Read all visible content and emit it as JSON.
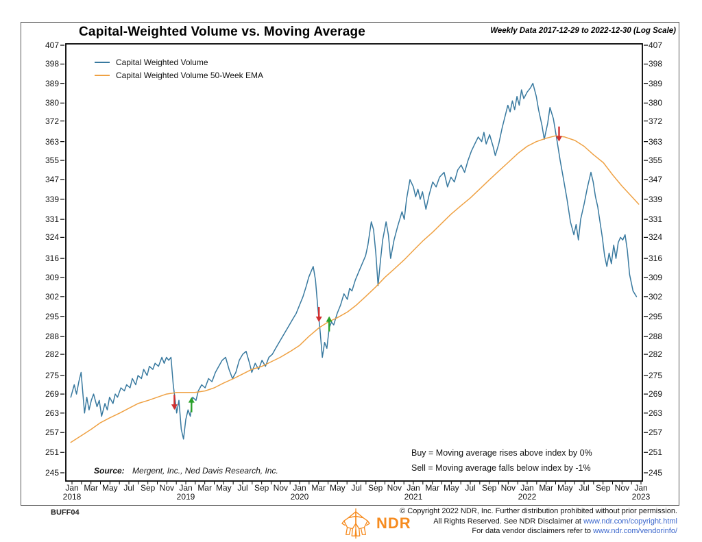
{
  "header": {
    "title": "Capital-Weighted Volume vs. Moving Average",
    "period_note": "Weekly Data 2017-12-29 to 2022-12-30 (Log Scale)"
  },
  "legend": [
    {
      "label": "Capital Weighted Volume",
      "color": "#38799f"
    },
    {
      "label": "Capital Weighted Volume 50-Week EMA",
      "color": "#efa143"
    }
  ],
  "annotations": {
    "buy_rule": "Buy = Moving average rises above index by 0%",
    "sell_rule": "Sell = Moving average falls below index by -1%",
    "source_label": "Source:",
    "source_text": "Mergent, Inc., Ned Davis Research, Inc."
  },
  "footer": {
    "chart_code": "BUFF04",
    "logo_text": "NDR",
    "logo_color": "#f68b1f",
    "copyright_line1": "© Copyright 2022 NDR, Inc. Further distribution prohibited without prior permission.",
    "copyright_line2_prefix": "All Rights Reserved. See NDR Disclaimer at ",
    "copyright_line2_link": "www.ndr.com/copyright.html",
    "copyright_line3_prefix": "For data vendor disclaimers refer to ",
    "copyright_line3_link": "www.ndr.com/vendorinfo/",
    "link_color": "#3a66cc"
  },
  "chart_data": {
    "type": "line",
    "title": "Capital-Weighted Volume vs. Moving Average",
    "y_scale": "log",
    "y_ticks": [
      407,
      398,
      389,
      380,
      372,
      363,
      355,
      347,
      339,
      331,
      324,
      316,
      309,
      302,
      295,
      288,
      282,
      275,
      269,
      263,
      257,
      251,
      245
    ],
    "ylim": [
      242,
      409
    ],
    "x_years": [
      2018,
      2019,
      2020,
      2021,
      2022
    ],
    "x_month_labels": [
      "Jan",
      "Mar",
      "May",
      "Jul",
      "Sep",
      "Nov"
    ],
    "x_final_month": "Jan",
    "x_final_year": 2023,
    "grid": false,
    "legend_position": "top-left",
    "series": [
      {
        "name": "Capital Weighted Volume",
        "color": "#38799f",
        "points": [
          [
            2017.99,
            268
          ],
          [
            2018.02,
            272
          ],
          [
            2018.04,
            269
          ],
          [
            2018.06,
            273
          ],
          [
            2018.08,
            276
          ],
          [
            2018.11,
            263
          ],
          [
            2018.13,
            268
          ],
          [
            2018.15,
            264
          ],
          [
            2018.17,
            267
          ],
          [
            2018.19,
            269
          ],
          [
            2018.22,
            265
          ],
          [
            2018.24,
            267
          ],
          [
            2018.26,
            262
          ],
          [
            2018.29,
            266
          ],
          [
            2018.31,
            264
          ],
          [
            2018.33,
            268
          ],
          [
            2018.36,
            266
          ],
          [
            2018.38,
            269
          ],
          [
            2018.4,
            268
          ],
          [
            2018.43,
            271
          ],
          [
            2018.46,
            270
          ],
          [
            2018.48,
            272
          ],
          [
            2018.51,
            271
          ],
          [
            2018.53,
            274
          ],
          [
            2018.56,
            272
          ],
          [
            2018.58,
            275
          ],
          [
            2018.61,
            274
          ],
          [
            2018.63,
            277
          ],
          [
            2018.66,
            275
          ],
          [
            2018.68,
            278
          ],
          [
            2018.71,
            277
          ],
          [
            2018.73,
            279
          ],
          [
            2018.76,
            278
          ],
          [
            2018.79,
            281
          ],
          [
            2018.81,
            279
          ],
          [
            2018.83,
            281
          ],
          [
            2018.85,
            280
          ],
          [
            2018.87,
            281
          ],
          [
            2018.89,
            272
          ],
          [
            2018.91,
            266
          ],
          [
            2018.92,
            263
          ],
          [
            2018.94,
            267
          ],
          [
            2018.96,
            258
          ],
          [
            2018.98,
            255
          ],
          [
            2019.0,
            261
          ],
          [
            2019.02,
            264
          ],
          [
            2019.04,
            262
          ],
          [
            2019.06,
            268
          ],
          [
            2019.09,
            267
          ],
          [
            2019.11,
            270
          ],
          [
            2019.14,
            272
          ],
          [
            2019.17,
            271
          ],
          [
            2019.2,
            274
          ],
          [
            2019.23,
            273
          ],
          [
            2019.26,
            276
          ],
          [
            2019.29,
            278
          ],
          [
            2019.32,
            280
          ],
          [
            2019.35,
            281
          ],
          [
            2019.38,
            277
          ],
          [
            2019.41,
            274
          ],
          [
            2019.44,
            276
          ],
          [
            2019.47,
            280
          ],
          [
            2019.5,
            282
          ],
          [
            2019.53,
            283
          ],
          [
            2019.56,
            279
          ],
          [
            2019.58,
            276
          ],
          [
            2019.61,
            279
          ],
          [
            2019.64,
            277
          ],
          [
            2019.67,
            280
          ],
          [
            2019.7,
            278
          ],
          [
            2019.73,
            281
          ],
          [
            2019.76,
            282
          ],
          [
            2019.79,
            284
          ],
          [
            2019.82,
            286
          ],
          [
            2019.85,
            288
          ],
          [
            2019.88,
            290
          ],
          [
            2019.91,
            292
          ],
          [
            2019.94,
            294
          ],
          [
            2019.97,
            296
          ],
          [
            2020.0,
            299
          ],
          [
            2020.03,
            302
          ],
          [
            2020.06,
            306
          ],
          [
            2020.08,
            309
          ],
          [
            2020.1,
            311
          ],
          [
            2020.12,
            313
          ],
          [
            2020.14,
            308
          ],
          [
            2020.16,
            298
          ],
          [
            2020.18,
            290
          ],
          [
            2020.2,
            281
          ],
          [
            2020.22,
            286
          ],
          [
            2020.24,
            284
          ],
          [
            2020.26,
            291
          ],
          [
            2020.28,
            293
          ],
          [
            2020.3,
            292
          ],
          [
            2020.33,
            296
          ],
          [
            2020.36,
            299
          ],
          [
            2020.39,
            303
          ],
          [
            2020.42,
            301
          ],
          [
            2020.44,
            305
          ],
          [
            2020.46,
            304
          ],
          [
            2020.49,
            308
          ],
          [
            2020.52,
            311
          ],
          [
            2020.55,
            314
          ],
          [
            2020.58,
            317
          ],
          [
            2020.6,
            321
          ],
          [
            2020.63,
            330
          ],
          [
            2020.65,
            327
          ],
          [
            2020.67,
            318
          ],
          [
            2020.69,
            306
          ],
          [
            2020.71,
            315
          ],
          [
            2020.73,
            323
          ],
          [
            2020.76,
            330
          ],
          [
            2020.78,
            325
          ],
          [
            2020.8,
            316
          ],
          [
            2020.83,
            323
          ],
          [
            2020.86,
            328
          ],
          [
            2020.88,
            331
          ],
          [
            2020.9,
            334
          ],
          [
            2020.92,
            331
          ],
          [
            2020.94,
            339
          ],
          [
            2020.97,
            347
          ],
          [
            2021.0,
            344
          ],
          [
            2021.02,
            340
          ],
          [
            2021.04,
            343
          ],
          [
            2021.06,
            339
          ],
          [
            2021.08,
            342
          ],
          [
            2021.11,
            335
          ],
          [
            2021.14,
            341
          ],
          [
            2021.17,
            346
          ],
          [
            2021.2,
            344
          ],
          [
            2021.23,
            348
          ],
          [
            2021.27,
            350
          ],
          [
            2021.3,
            344
          ],
          [
            2021.33,
            348
          ],
          [
            2021.36,
            346
          ],
          [
            2021.39,
            351
          ],
          [
            2021.42,
            353
          ],
          [
            2021.45,
            350
          ],
          [
            2021.48,
            355
          ],
          [
            2021.51,
            359
          ],
          [
            2021.54,
            362
          ],
          [
            2021.57,
            365
          ],
          [
            2021.6,
            363
          ],
          [
            2021.62,
            367
          ],
          [
            2021.64,
            362
          ],
          [
            2021.67,
            366
          ],
          [
            2021.7,
            361
          ],
          [
            2021.72,
            357
          ],
          [
            2021.75,
            362
          ],
          [
            2021.78,
            369
          ],
          [
            2021.81,
            375
          ],
          [
            2021.83,
            379
          ],
          [
            2021.85,
            376
          ],
          [
            2021.87,
            381
          ],
          [
            2021.89,
            377
          ],
          [
            2021.91,
            383
          ],
          [
            2021.93,
            379
          ],
          [
            2021.95,
            386
          ],
          [
            2021.97,
            382
          ],
          [
            2022.0,
            385
          ],
          [
            2022.03,
            387
          ],
          [
            2022.05,
            389
          ],
          [
            2022.08,
            383
          ],
          [
            2022.1,
            377
          ],
          [
            2022.13,
            370
          ],
          [
            2022.15,
            364
          ],
          [
            2022.18,
            371
          ],
          [
            2022.2,
            378
          ],
          [
            2022.23,
            373
          ],
          [
            2022.26,
            364
          ],
          [
            2022.29,
            355
          ],
          [
            2022.32,
            347
          ],
          [
            2022.35,
            339
          ],
          [
            2022.38,
            330
          ],
          [
            2022.41,
            325
          ],
          [
            2022.43,
            329
          ],
          [
            2022.45,
            323
          ],
          [
            2022.47,
            331
          ],
          [
            2022.5,
            337
          ],
          [
            2022.53,
            344
          ],
          [
            2022.56,
            350
          ],
          [
            2022.58,
            346
          ],
          [
            2022.6,
            340
          ],
          [
            2022.62,
            336
          ],
          [
            2022.64,
            330
          ],
          [
            2022.66,
            324
          ],
          [
            2022.68,
            317
          ],
          [
            2022.7,
            313
          ],
          [
            2022.72,
            318
          ],
          [
            2022.74,
            314
          ],
          [
            2022.76,
            321
          ],
          [
            2022.78,
            316
          ],
          [
            2022.8,
            322
          ],
          [
            2022.82,
            324
          ],
          [
            2022.84,
            323
          ],
          [
            2022.86,
            325
          ],
          [
            2022.88,
            319
          ],
          [
            2022.9,
            310
          ],
          [
            2022.93,
            304
          ],
          [
            2022.96,
            302
          ]
        ]
      },
      {
        "name": "Capital Weighted Volume 50-Week EMA",
        "color": "#efa143",
        "points": [
          [
            2017.99,
            254
          ],
          [
            2018.08,
            256
          ],
          [
            2018.17,
            258
          ],
          [
            2018.25,
            260
          ],
          [
            2018.33,
            261.5
          ],
          [
            2018.42,
            263
          ],
          [
            2018.5,
            264.5
          ],
          [
            2018.58,
            266
          ],
          [
            2018.67,
            267
          ],
          [
            2018.75,
            268
          ],
          [
            2018.83,
            269
          ],
          [
            2018.92,
            269.5
          ],
          [
            2019.0,
            269.5
          ],
          [
            2019.08,
            269.5
          ],
          [
            2019.17,
            270
          ],
          [
            2019.25,
            271
          ],
          [
            2019.33,
            272.5
          ],
          [
            2019.42,
            274
          ],
          [
            2019.5,
            275.5
          ],
          [
            2019.58,
            277
          ],
          [
            2019.67,
            278
          ],
          [
            2019.75,
            279.5
          ],
          [
            2019.83,
            281
          ],
          [
            2019.92,
            283
          ],
          [
            2020.0,
            285
          ],
          [
            2020.08,
            288
          ],
          [
            2020.17,
            291
          ],
          [
            2020.25,
            293
          ],
          [
            2020.33,
            294.5
          ],
          [
            2020.42,
            296.5
          ],
          [
            2020.5,
            299
          ],
          [
            2020.58,
            302
          ],
          [
            2020.67,
            305.5
          ],
          [
            2020.75,
            309
          ],
          [
            2020.83,
            312
          ],
          [
            2020.92,
            315.5
          ],
          [
            2021.0,
            319
          ],
          [
            2021.08,
            322.5
          ],
          [
            2021.17,
            326
          ],
          [
            2021.25,
            329.5
          ],
          [
            2021.33,
            333
          ],
          [
            2021.42,
            336.5
          ],
          [
            2021.5,
            339.5
          ],
          [
            2021.58,
            343
          ],
          [
            2021.67,
            347
          ],
          [
            2021.75,
            350.5
          ],
          [
            2021.83,
            354
          ],
          [
            2021.92,
            358
          ],
          [
            2022.0,
            361
          ],
          [
            2022.08,
            363
          ],
          [
            2022.17,
            364.5
          ],
          [
            2022.25,
            365.5
          ],
          [
            2022.33,
            365
          ],
          [
            2022.42,
            363.5
          ],
          [
            2022.5,
            361
          ],
          [
            2022.58,
            357.5
          ],
          [
            2022.67,
            354
          ],
          [
            2022.75,
            349
          ],
          [
            2022.83,
            344.5
          ],
          [
            2022.92,
            340
          ],
          [
            2022.98,
            337
          ]
        ]
      }
    ],
    "signals": [
      {
        "type": "sell",
        "t": 2018.9,
        "v": 264
      },
      {
        "type": "buy",
        "t": 2019.05,
        "v": 268
      },
      {
        "type": "sell",
        "t": 2020.17,
        "v": 293
      },
      {
        "type": "buy",
        "t": 2020.26,
        "v": 295
      },
      {
        "type": "sell",
        "t": 2022.28,
        "v": 363
      }
    ],
    "signal_colors": {
      "buy": "#2aa12a",
      "sell": "#d03030"
    }
  }
}
